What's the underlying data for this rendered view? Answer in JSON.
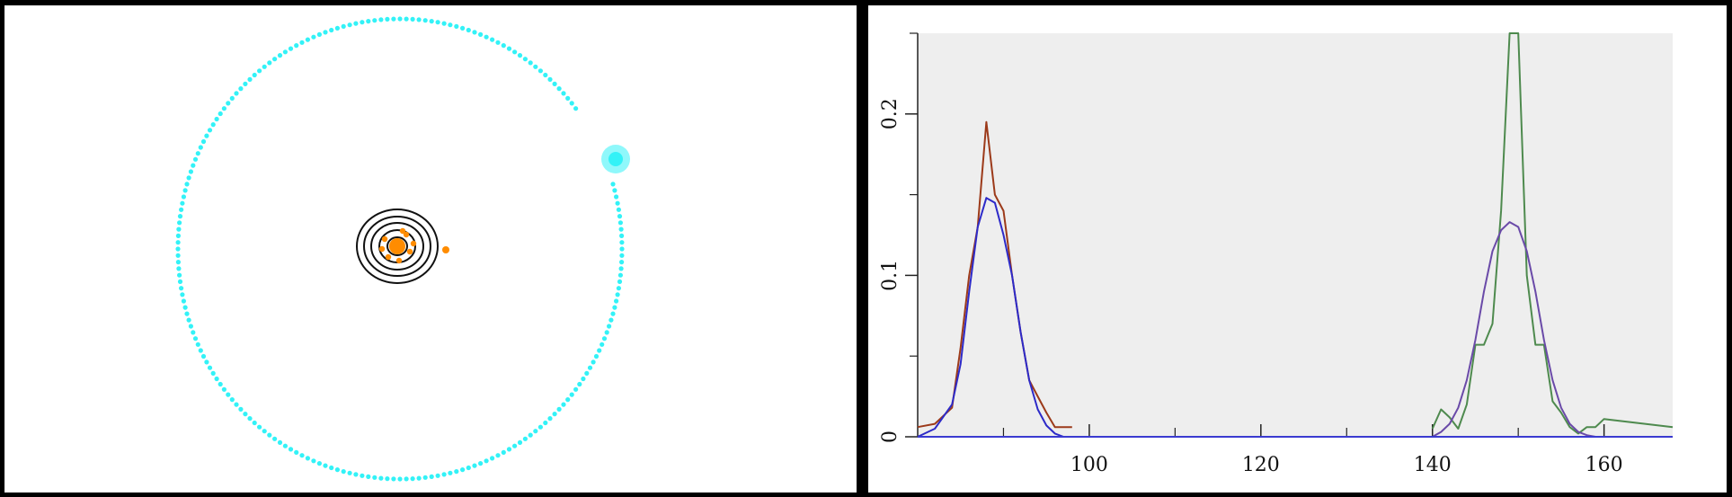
{
  "orbit_panel": {
    "colors": {
      "orbit": "#33f2f7",
      "planet": "#33f2f7",
      "star": "#ff8c00",
      "contour": "#111111"
    },
    "planet_orbit_dots": 220
  },
  "chart_data": {
    "type": "line",
    "xlim": [
      80,
      168
    ],
    "ylim": [
      0,
      0.25
    ],
    "x_ticks": [
      100,
      120,
      140,
      160
    ],
    "x_minor_ticks": [
      90,
      110,
      130,
      150
    ],
    "y_ticks": [
      0,
      0.1,
      0.2
    ],
    "y_tick_labels": [
      "0",
      "0.1",
      "0.2"
    ],
    "y_minor_ticks": [
      0.05,
      0.15
    ],
    "background": "#eeeeee",
    "grid": false,
    "series": [
      {
        "color": "#9c3a1a",
        "x": [
          80,
          82,
          84,
          85,
          86,
          87,
          88,
          89,
          90,
          91,
          92,
          93,
          94,
          95,
          96,
          97,
          98
        ],
        "y": [
          0.006,
          0.008,
          0.018,
          0.055,
          0.1,
          0.13,
          0.195,
          0.15,
          0.14,
          0.1,
          0.065,
          0.035,
          0.025,
          0.015,
          0.006,
          0.006,
          0.006
        ]
      },
      {
        "color": "#2d2ac8",
        "x": [
          80,
          82,
          84,
          85,
          86,
          87,
          88,
          89,
          90,
          91,
          92,
          93,
          94,
          95,
          96,
          97
        ],
        "y": [
          0.0,
          0.005,
          0.02,
          0.045,
          0.09,
          0.13,
          0.148,
          0.145,
          0.125,
          0.1,
          0.065,
          0.035,
          0.017,
          0.007,
          0.002,
          0.0
        ]
      },
      {
        "color": "#4e8a4e",
        "x": [
          140,
          141,
          142,
          143,
          144,
          145,
          146,
          147,
          148,
          149,
          150,
          151,
          152,
          153,
          154,
          155,
          156,
          157,
          158,
          159,
          160,
          168
        ],
        "y": [
          0.005,
          0.017,
          0.012,
          0.005,
          0.02,
          0.057,
          0.057,
          0.07,
          0.14,
          0.25,
          0.25,
          0.1,
          0.057,
          0.057,
          0.022,
          0.015,
          0.006,
          0.002,
          0.006,
          0.006,
          0.011,
          0.006
        ]
      },
      {
        "color": "#6a4aa8",
        "x": [
          140,
          141,
          142,
          143,
          144,
          145,
          146,
          147,
          148,
          149,
          150,
          151,
          152,
          153,
          154,
          155,
          156,
          157,
          158,
          159,
          160
        ],
        "y": [
          0.0,
          0.003,
          0.008,
          0.018,
          0.035,
          0.06,
          0.09,
          0.115,
          0.128,
          0.133,
          0.13,
          0.115,
          0.09,
          0.06,
          0.035,
          0.018,
          0.008,
          0.003,
          0.001,
          0.0,
          0.0
        ]
      },
      {
        "color": "#3a3ad0",
        "x": [
          80,
          168
        ],
        "y": [
          0,
          0
        ]
      }
    ]
  }
}
